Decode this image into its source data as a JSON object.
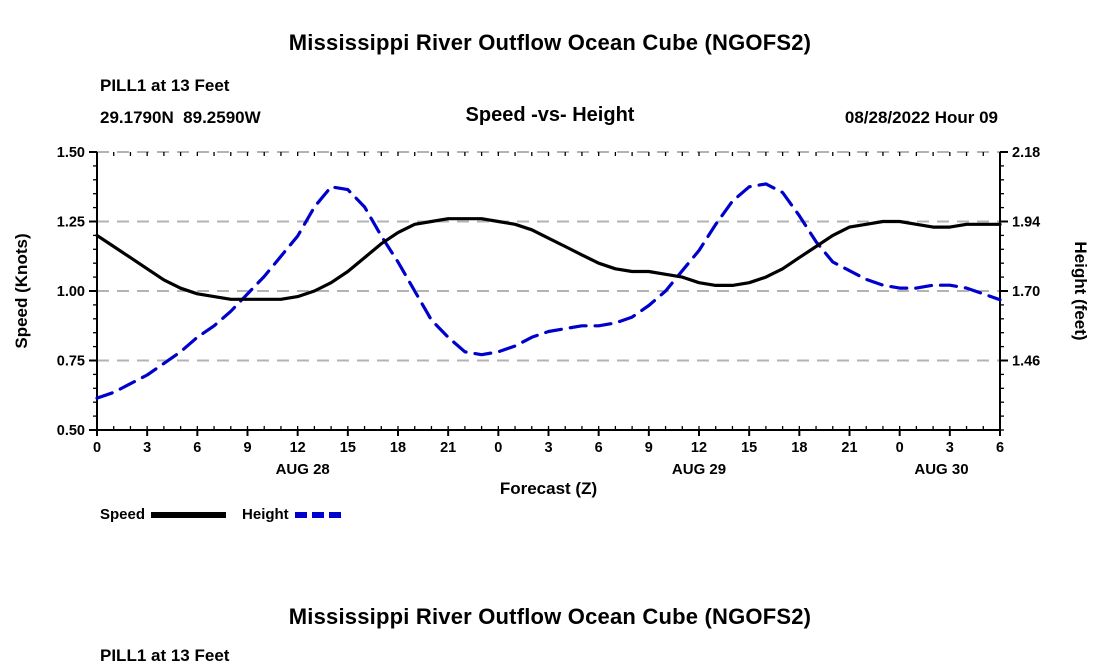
{
  "top_chart": {
    "title": "Mississippi River Outflow Ocean Cube (NGOFS2)",
    "station_line1": "PILL1 at 13 Feet",
    "station_line2": "29.1790N  89.2590W",
    "subtitle": "Speed -vs- Height",
    "datetime": "08/28/2022 Hour 09",
    "xlabel": "Forecast (Z)",
    "y_left_title": "Speed (Knots)",
    "y_right_title": "Height (feet)",
    "legend": [
      {
        "label": "Speed",
        "color": "#000000",
        "style": "solid"
      },
      {
        "label": "Height",
        "color": "#0000cc",
        "style": "dashed"
      }
    ]
  },
  "bottom_chart": {
    "title": "Mississippi River Outflow Ocean Cube (NGOFS2)",
    "station_line1": "PILL1 at 13 Feet"
  },
  "colors": {
    "speed_line": "#000000",
    "height_line": "#0000cc",
    "gridline": "#b3b3b3",
    "axis": "#000000"
  },
  "chart_data": {
    "type": "line",
    "title": "Speed -vs- Height",
    "xlabel": "Forecast (Z)",
    "x_tick_hours": [
      0,
      3,
      6,
      9,
      12,
      15,
      18,
      21,
      24,
      27,
      30,
      33,
      36,
      39,
      42,
      45,
      48,
      51,
      54
    ],
    "x_tick_labels": [
      "0",
      "3",
      "6",
      "9",
      "12",
      "15",
      "18",
      "21",
      "0",
      "3",
      "6",
      "9",
      "12",
      "15",
      "18",
      "21",
      "0",
      "3",
      "6"
    ],
    "day_labels": [
      {
        "text": "AUG 28",
        "hour": 12.3
      },
      {
        "text": "AUG 29",
        "hour": 36
      },
      {
        "text": "AUG 30",
        "hour": 50.5
      }
    ],
    "y_left": {
      "label": "Speed (Knots)",
      "min": 0.5,
      "max": 1.5,
      "ticks": [
        0.5,
        0.75,
        1.0,
        1.25,
        1.5
      ],
      "tick_labels": [
        "0.50",
        "0.75",
        "1.00",
        "1.25",
        "1.50"
      ],
      "minor_step": 0.05
    },
    "y_right": {
      "label": "Height (feet)",
      "min": 1.22,
      "max": 2.18,
      "ticks": [
        1.46,
        1.7,
        1.94,
        2.18
      ],
      "tick_labels": [
        "1.46",
        "1.70",
        "1.94",
        "2.18"
      ],
      "minor_step": 0.048
    },
    "gridlines_at": [
      0.75,
      1.0,
      1.25,
      1.5
    ],
    "legend_position": "bottom-left",
    "series": [
      {
        "name": "Speed",
        "axis": "left",
        "color": "#000000",
        "dash": "solid",
        "x_start": 0,
        "x_step": 1,
        "values": [
          1.2,
          1.16,
          1.12,
          1.08,
          1.04,
          1.01,
          0.99,
          0.98,
          0.97,
          0.97,
          0.97,
          0.97,
          0.98,
          1.0,
          1.03,
          1.07,
          1.12,
          1.17,
          1.21,
          1.24,
          1.25,
          1.26,
          1.26,
          1.26,
          1.25,
          1.24,
          1.22,
          1.19,
          1.16,
          1.13,
          1.1,
          1.08,
          1.07,
          1.07,
          1.06,
          1.05,
          1.03,
          1.02,
          1.02,
          1.03,
          1.05,
          1.08,
          1.12,
          1.16,
          1.2,
          1.23,
          1.24,
          1.25,
          1.25,
          1.24,
          1.23,
          1.23,
          1.24,
          1.24,
          1.24
        ]
      },
      {
        "name": "Height",
        "axis": "right",
        "color": "#0000cc",
        "dash": "dashed",
        "x_start": 0,
        "x_step": 1,
        "values": [
          1.33,
          1.35,
          1.38,
          1.41,
          1.45,
          1.49,
          1.54,
          1.58,
          1.63,
          1.69,
          1.75,
          1.82,
          1.89,
          1.99,
          2.06,
          2.05,
          1.99,
          1.89,
          1.8,
          1.7,
          1.6,
          1.54,
          1.49,
          1.48,
          1.49,
          1.51,
          1.54,
          1.56,
          1.57,
          1.58,
          1.58,
          1.59,
          1.61,
          1.65,
          1.7,
          1.77,
          1.84,
          1.93,
          2.01,
          2.06,
          2.07,
          2.04,
          1.96,
          1.87,
          1.8,
          1.77,
          1.74,
          1.72,
          1.71,
          1.71,
          1.72,
          1.72,
          1.71,
          1.69,
          1.67
        ]
      }
    ]
  }
}
